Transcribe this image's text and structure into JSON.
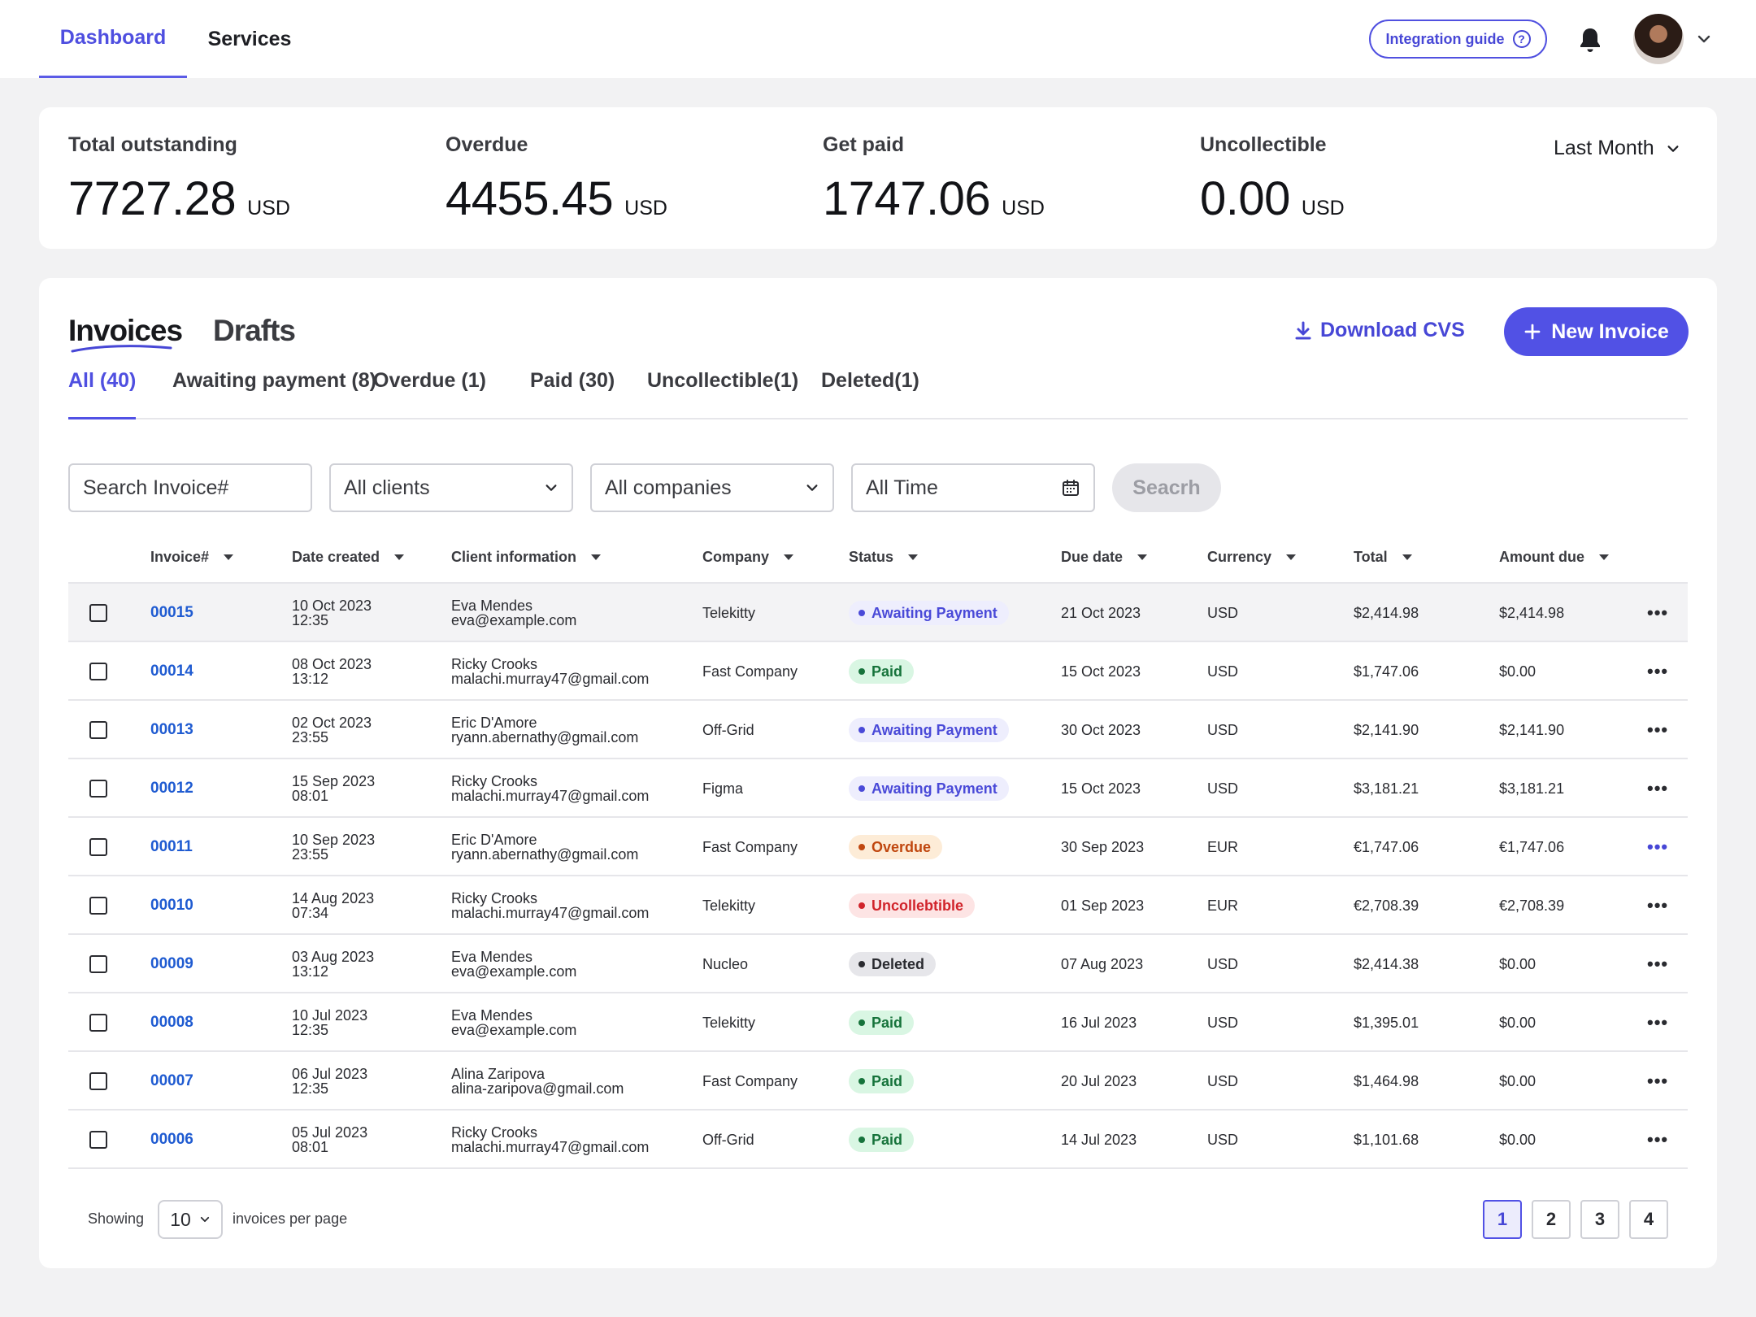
{
  "nav": {
    "tabs": [
      {
        "label": "Dashboard",
        "active": true
      },
      {
        "label": "Services",
        "active": false
      }
    ],
    "integration_guide": "Integration guide",
    "guide_icon": "?"
  },
  "stats": {
    "items": [
      {
        "label": "Total outstanding",
        "value": "7727.28",
        "unit": "USD"
      },
      {
        "label": "Overdue",
        "value": "4455.45",
        "unit": "USD"
      },
      {
        "label": "Get paid",
        "value": "1747.06",
        "unit": "USD"
      },
      {
        "label": "Uncollectible",
        "value": "0.00",
        "unit": "USD"
      }
    ],
    "period": "Last Month"
  },
  "invoices": {
    "tabs": [
      {
        "label": "Invoices",
        "active": true
      },
      {
        "label": "Drafts",
        "active": false
      }
    ],
    "download_label": "Download CVS",
    "new_invoice_label": "New Invoice",
    "filter_tabs": [
      {
        "label": "All (40)",
        "active": true
      },
      {
        "label": "Awaiting payment (8)",
        "active": false
      },
      {
        "label": "Overdue (1)",
        "active": false
      },
      {
        "label": "Paid (30)",
        "active": false
      },
      {
        "label": "Uncollectible(1)",
        "active": false
      },
      {
        "label": "Deleted(1)",
        "active": false
      }
    ],
    "filters": {
      "search_placeholder": "Search Invoice#",
      "clients": "All clients",
      "companies": "All companies",
      "time": "All Time",
      "search_button": "Seacrh"
    },
    "columns": [
      "Invoice#",
      "Date created",
      "Client information",
      "Company",
      "Status",
      "Due date",
      "Currency",
      "Total",
      "Amount due"
    ],
    "rows": [
      {
        "id": "00015",
        "date": "10 Oct 2023",
        "time": "12:35",
        "client": "Eva Mendes",
        "email": "eva@example.com",
        "company": "Telekitty",
        "status": "Awaiting Payment",
        "due": "21 Oct 2023",
        "currency": "USD",
        "total": "$2,414.98",
        "amount_due": "$2,414.98"
      },
      {
        "id": "00014",
        "date": "08 Oct 2023",
        "time": "13:12",
        "client": "Ricky Crooks",
        "email": "malachi.murray47@gmail.com",
        "company": "Fast Company",
        "status": "Paid",
        "due": "15 Oct 2023",
        "currency": "USD",
        "total": "$1,747.06",
        "amount_due": "$0.00"
      },
      {
        "id": "00013",
        "date": "02 Oct 2023",
        "time": "23:55",
        "client": "Eric D'Amore",
        "email": "ryann.abernathy@gmail.com",
        "company": "Off-Grid",
        "status": "Awaiting Payment",
        "due": "30 Oct 2023",
        "currency": "USD",
        "total": "$2,141.90",
        "amount_due": "$2,141.90"
      },
      {
        "id": "00012",
        "date": "15 Sep 2023",
        "time": "08:01",
        "client": "Ricky Crooks",
        "email": "malachi.murray47@gmail.com",
        "company": "Figma",
        "status": "Awaiting Payment",
        "due": "15 Oct 2023",
        "currency": "USD",
        "total": "$3,181.21",
        "amount_due": "$3,181.21"
      },
      {
        "id": "00011",
        "date": "10 Sep 2023",
        "time": "23:55",
        "client": "Eric D'Amore",
        "email": "ryann.abernathy@gmail.com",
        "company": "Fast Company",
        "status": "Overdue",
        "due": "30 Sep 2023",
        "currency": "EUR",
        "total": "€1,747.06",
        "amount_due": "€1,747.06"
      },
      {
        "id": "00010",
        "date": "14 Aug 2023",
        "time": "07:34",
        "client": "Ricky Crooks",
        "email": "malachi.murray47@gmail.com",
        "company": "Telekitty",
        "status": "Uncollebtible",
        "due": "01 Sep 2023",
        "currency": "EUR",
        "total": "€2,708.39",
        "amount_due": "€2,708.39"
      },
      {
        "id": "00009",
        "date": "03 Aug 2023",
        "time": "13:12",
        "client": "Eva Mendes",
        "email": "eva@example.com",
        "company": "Nucleo",
        "status": "Deleted",
        "due": "07 Aug 2023",
        "currency": "USD",
        "total": "$2,414.38",
        "amount_due": "$0.00"
      },
      {
        "id": "00008",
        "date": "10 Jul 2023",
        "time": "12:35",
        "client": "Eva Mendes",
        "email": "eva@example.com",
        "company": "Telekitty",
        "status": "Paid",
        "due": "16 Jul 2023",
        "currency": "USD",
        "total": "$1,395.01",
        "amount_due": "$0.00"
      },
      {
        "id": "00007",
        "date": "06 Jul 2023",
        "time": "12:35",
        "client": "Alina Zaripova",
        "email": "alina-zaripova@gmail.com",
        "company": "Fast Company",
        "status": "Paid",
        "due": "20 Jul 2023",
        "currency": "USD",
        "total": "$1,464.98",
        "amount_due": "$0.00"
      },
      {
        "id": "00006",
        "date": "05 Jul 2023",
        "time": "08:01",
        "client": "Ricky Crooks",
        "email": "malachi.murray47@gmail.com",
        "company": "Off-Grid",
        "status": "Paid",
        "due": "14 Jul 2023",
        "currency": "USD",
        "total": "$1,101.68",
        "amount_due": "$0.00"
      }
    ],
    "status_colors": {
      "Awaiting Payment": {
        "bg": "#eeeefd",
        "fg": "#4a4ad8"
      },
      "Paid": {
        "bg": "#d9f6e3",
        "fg": "#16733b"
      },
      "Overdue": {
        "bg": "#fdecd7",
        "fg": "#c0470f"
      },
      "Uncollebtible": {
        "bg": "#fde4e4",
        "fg": "#d1242b"
      },
      "Deleted": {
        "bg": "#e6e6ea",
        "fg": "#2a2b30"
      }
    },
    "more_label": "•••",
    "footer": {
      "showing": "Showing",
      "per_page_value": "10",
      "per_page_text": "invoices per page",
      "pages": [
        "1",
        "2",
        "3",
        "4"
      ],
      "current_page": "1"
    }
  }
}
